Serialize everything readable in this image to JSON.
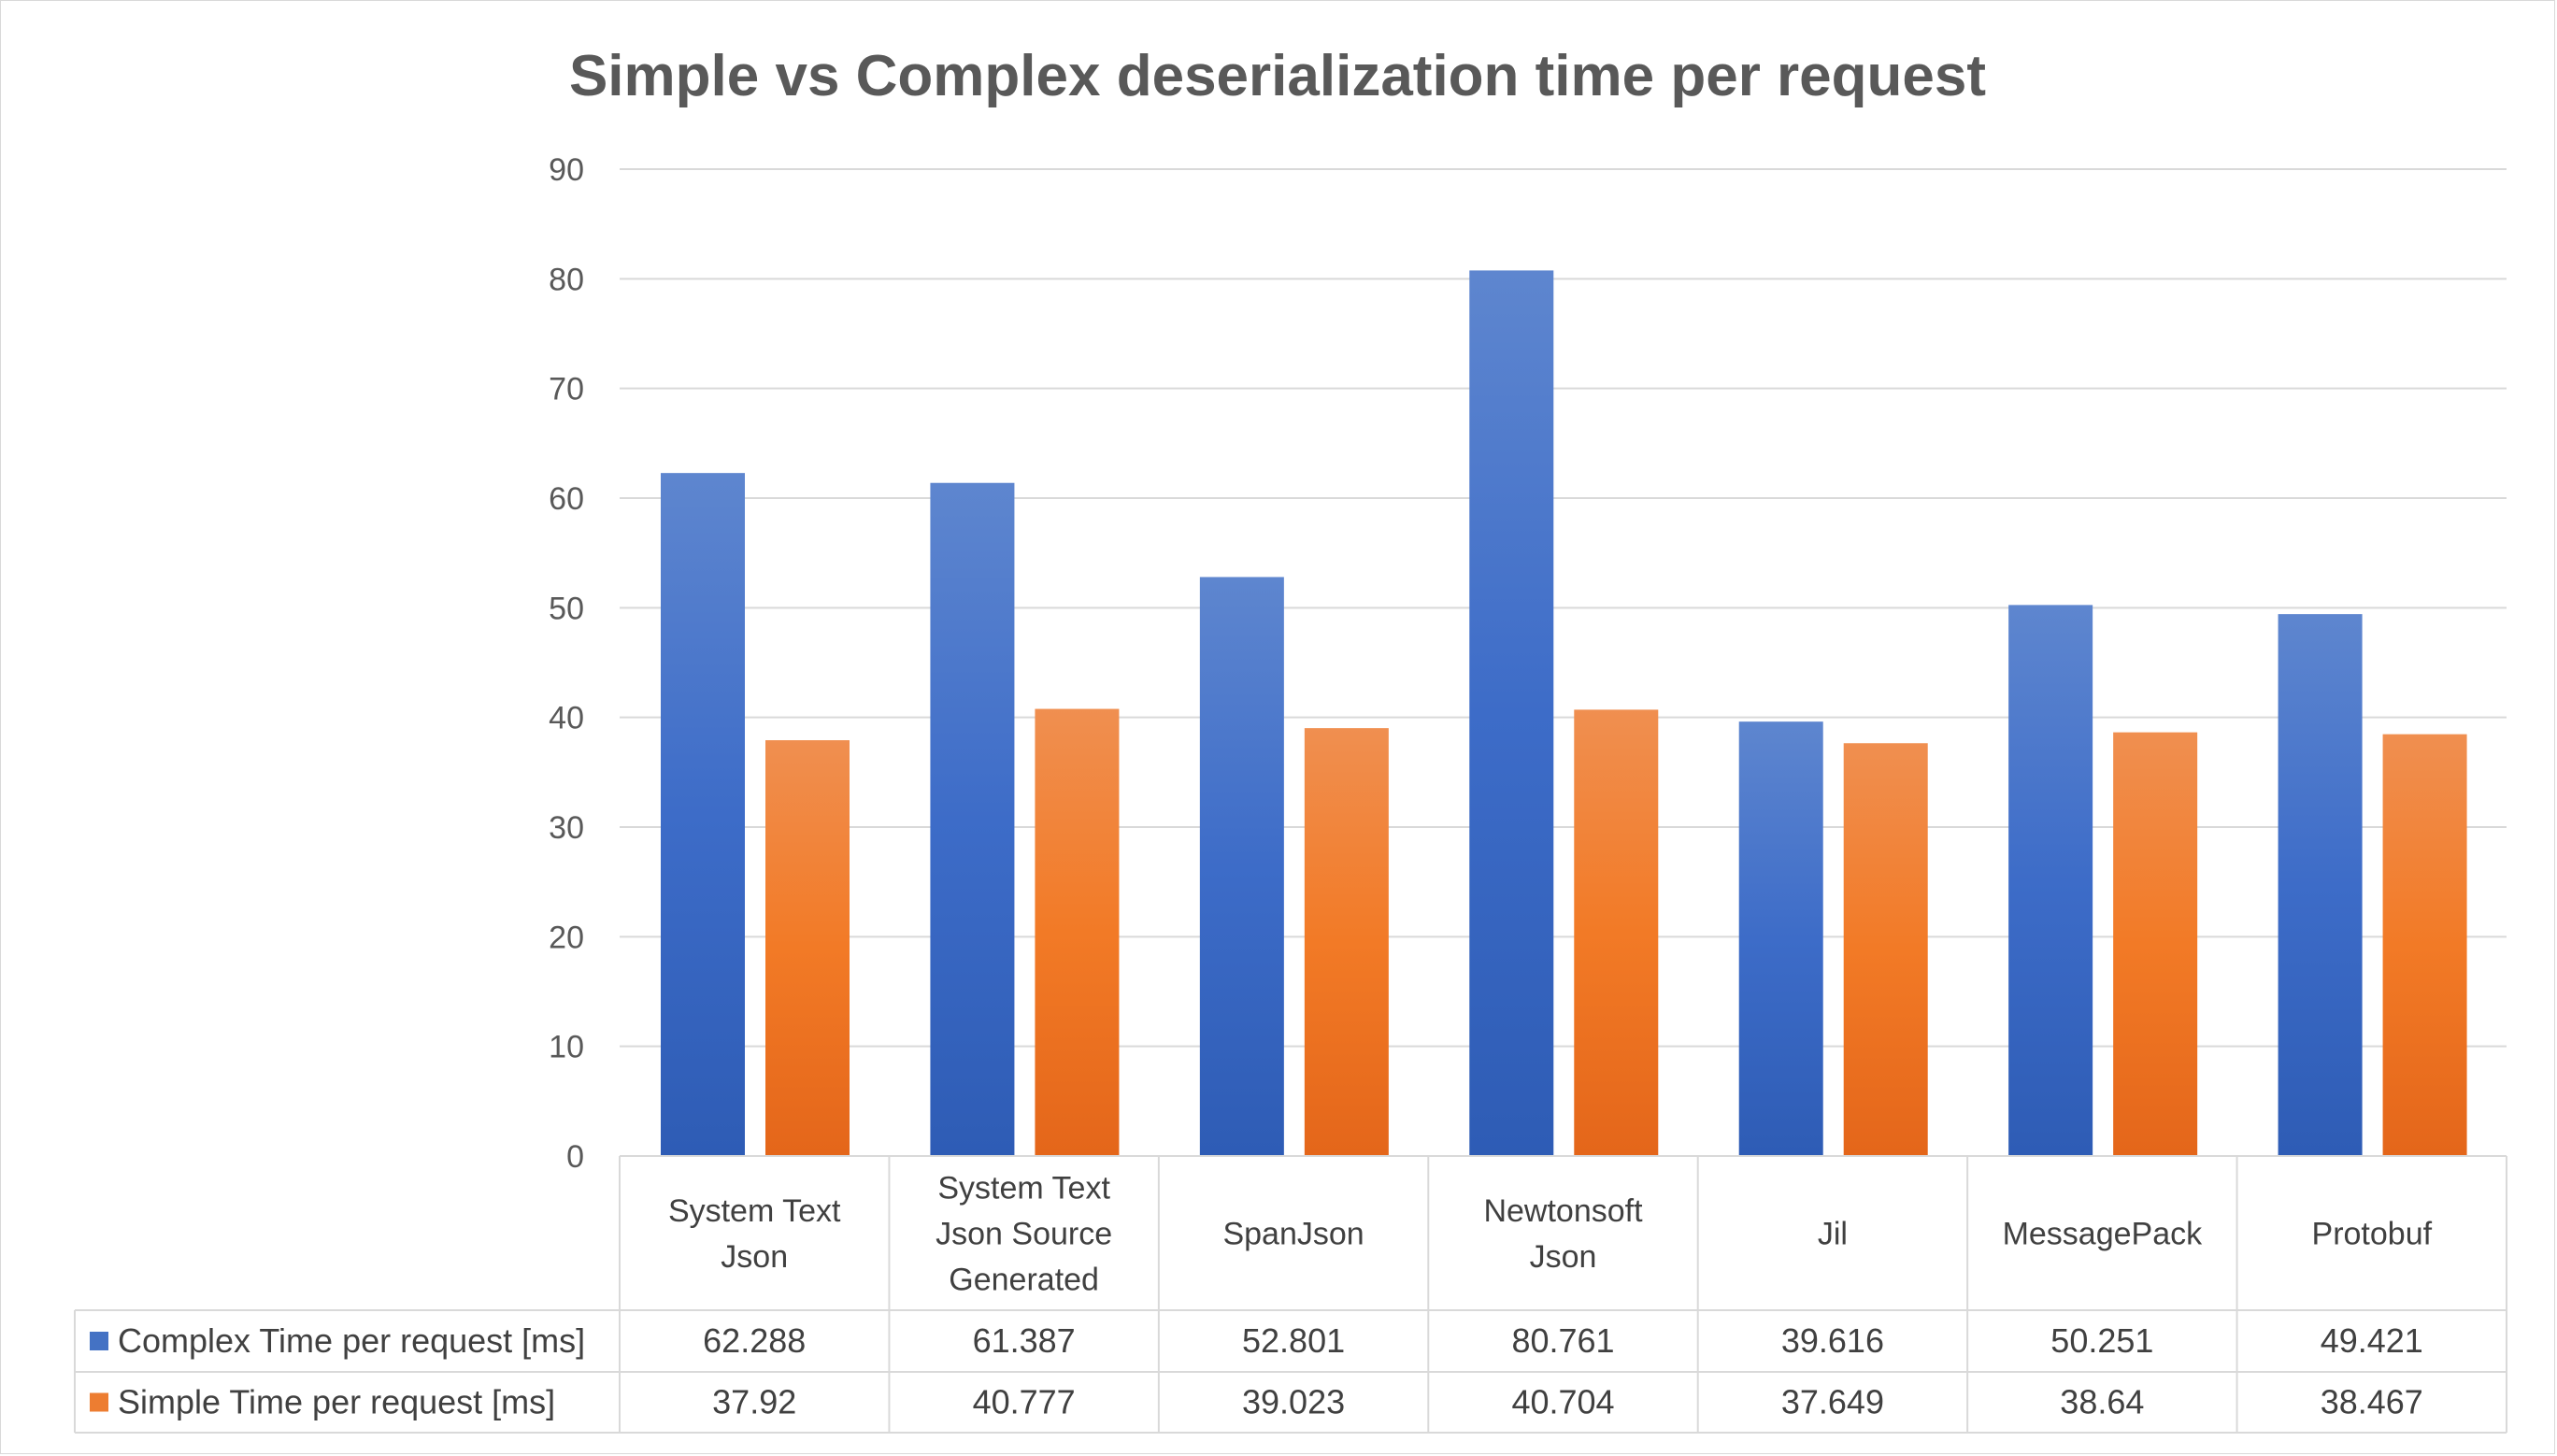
{
  "chart_data": {
    "type": "bar",
    "title": "Simple vs Complex deserialization time per request",
    "categories": [
      [
        "System Text",
        "Json"
      ],
      [
        "System Text",
        "Json Source",
        "Generated"
      ],
      [
        "SpanJson"
      ],
      [
        "Newtonsoft",
        "Json"
      ],
      [
        "Jil"
      ],
      [
        "MessagePack"
      ],
      [
        "Protobuf"
      ]
    ],
    "series": [
      {
        "name": "Complex Time per request [ms]",
        "color": "#4472C4",
        "values": [
          62.288,
          61.387,
          52.801,
          80.761,
          39.616,
          50.251,
          49.421
        ],
        "labels": [
          "62.288",
          "61.387",
          "52.801",
          "80.761",
          "39.616",
          "50.251",
          "49.421"
        ]
      },
      {
        "name": "Simple Time per request [ms]",
        "color": "#ED7D31",
        "values": [
          37.92,
          40.777,
          39.023,
          40.704,
          37.649,
          38.64,
          38.467
        ],
        "labels": [
          "37.92",
          "40.777",
          "39.023",
          "40.704",
          "37.649",
          "38.64",
          "38.467"
        ]
      }
    ],
    "ylim": [
      0,
      90
    ],
    "yticks": [
      0,
      10,
      20,
      30,
      40,
      50,
      60,
      70,
      80,
      90
    ],
    "grid": true,
    "legend": "data-table"
  }
}
